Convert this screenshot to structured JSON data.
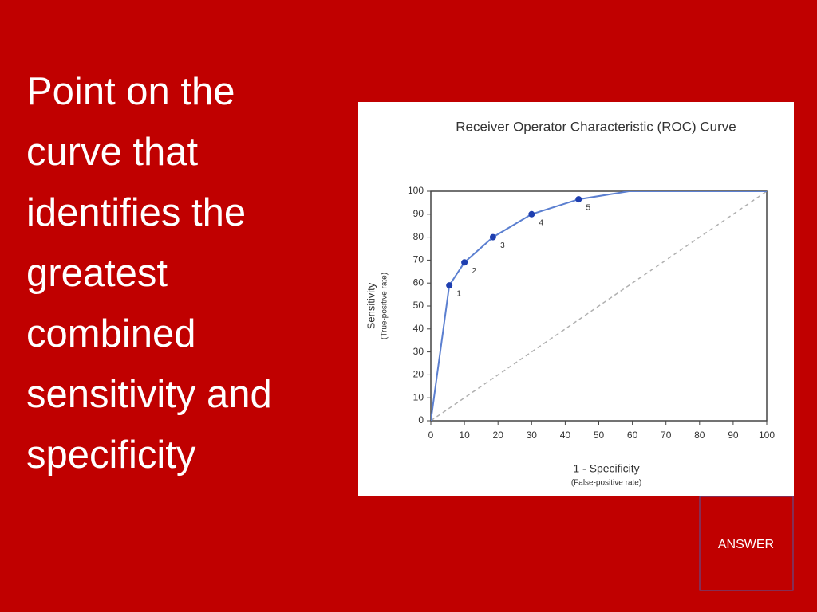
{
  "slide": {
    "heading_lines": [
      "Point on the",
      "curve that",
      "identifies the",
      "greatest",
      "combined",
      "sensitivity and",
      "specificity"
    ],
    "answer_button": "ANSWER"
  },
  "chart_data": {
    "type": "line",
    "title": "Receiver Operator Characteristic (ROC) Curve",
    "x_label": "1 - Specificity",
    "x_sublabel": "(False-positive rate)",
    "y_label": "Sensitivity",
    "y_sublabel": "(True-positive rate)",
    "xlim": [
      0,
      100
    ],
    "ylim": [
      0,
      100
    ],
    "xticks": [
      0,
      10,
      20,
      30,
      40,
      50,
      60,
      70,
      80,
      90,
      100
    ],
    "yticks": [
      0,
      10,
      20,
      30,
      40,
      50,
      60,
      70,
      80,
      90,
      100
    ],
    "series": [
      {
        "color": "#5b7fd0",
        "x": [
          0,
          5.5,
          10,
          18.5,
          30,
          44,
          59,
          100
        ],
        "values": [
          0,
          59,
          69,
          80,
          90,
          96.5,
          100,
          100
        ],
        "point_labels": [
          null,
          "1",
          "2",
          "3",
          "4",
          "5",
          null,
          null
        ],
        "marker_color": "#1f3fb0"
      },
      {
        "color": "#b0b0b0",
        "dashed": true,
        "x": [
          0,
          100
        ],
        "values": [
          0,
          100
        ]
      }
    ]
  }
}
